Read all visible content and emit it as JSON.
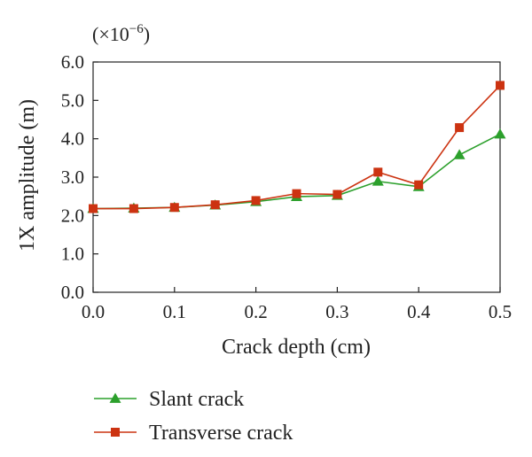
{
  "chart_data": {
    "type": "line",
    "title": "",
    "xlabel": "Crack depth (cm)",
    "ylabel": "1X amplitude (m)",
    "y_multiplier": {
      "base": "(×10",
      "exponent": "−6",
      "close": ")"
    },
    "xlim": [
      0.0,
      0.5
    ],
    "ylim": [
      0.0,
      6.0
    ],
    "x_ticks": [
      "0.0",
      "0.1",
      "0.2",
      "0.3",
      "0.4",
      "0.5"
    ],
    "y_ticks": [
      "0.0",
      "1.0",
      "2.0",
      "3.0",
      "4.0",
      "5.0",
      "6.0"
    ],
    "x": [
      0.0,
      0.05,
      0.1,
      0.15,
      0.2,
      0.25,
      0.3,
      0.35,
      0.4,
      0.45,
      0.5
    ],
    "series": [
      {
        "name": "Slant crack",
        "color": "#2ca02c",
        "marker": "triangle",
        "values": [
          2.18,
          2.19,
          2.21,
          2.27,
          2.36,
          2.49,
          2.52,
          2.89,
          2.75,
          3.58,
          4.12
        ]
      },
      {
        "name": "Transverse crack",
        "color": "#cc3311",
        "marker": "square",
        "values": [
          2.18,
          2.18,
          2.21,
          2.28,
          2.39,
          2.57,
          2.55,
          3.13,
          2.8,
          4.29,
          5.39
        ]
      }
    ],
    "grid": false,
    "legend_position": "bottom"
  }
}
